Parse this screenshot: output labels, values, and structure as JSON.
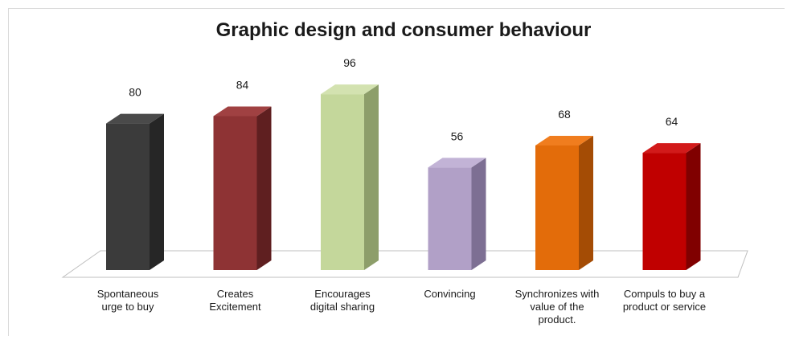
{
  "chart_data": {
    "type": "bar",
    "title": "Graphic design and consumer behaviour",
    "categories": [
      "Spontaneous\nurge to buy",
      "Creates\nExcitement",
      "Encourages\ndigital sharing",
      "Convincing",
      "Synchronizes with\nvalue of the\nproduct.",
      "Compuls to buy a\nproduct or service"
    ],
    "values": [
      80,
      84,
      96,
      56,
      68,
      64
    ],
    "data_labels": [
      "80",
      "84",
      "96",
      "56",
      "68",
      "64"
    ],
    "colors": [
      {
        "front": "#3b3b3b",
        "side": "#262626",
        "top": "#4a4a4a"
      },
      {
        "front": "#8e3334",
        "side": "#5f1f20",
        "top": "#a04142"
      },
      {
        "front": "#c4d79b",
        "side": "#8d9e6a",
        "top": "#d3e2b0"
      },
      {
        "front": "#b1a0c7",
        "side": "#7d6f93",
        "top": "#c2b3d6"
      },
      {
        "front": "#e36c0a",
        "side": "#a44c05",
        "top": "#f07d1e"
      },
      {
        "front": "#c00000",
        "side": "#800000",
        "top": "#d21a1a"
      }
    ],
    "xlabel": "",
    "ylabel": "",
    "ylim": [
      0,
      100
    ],
    "grid": false,
    "legend": "none",
    "style": "3d-column"
  }
}
